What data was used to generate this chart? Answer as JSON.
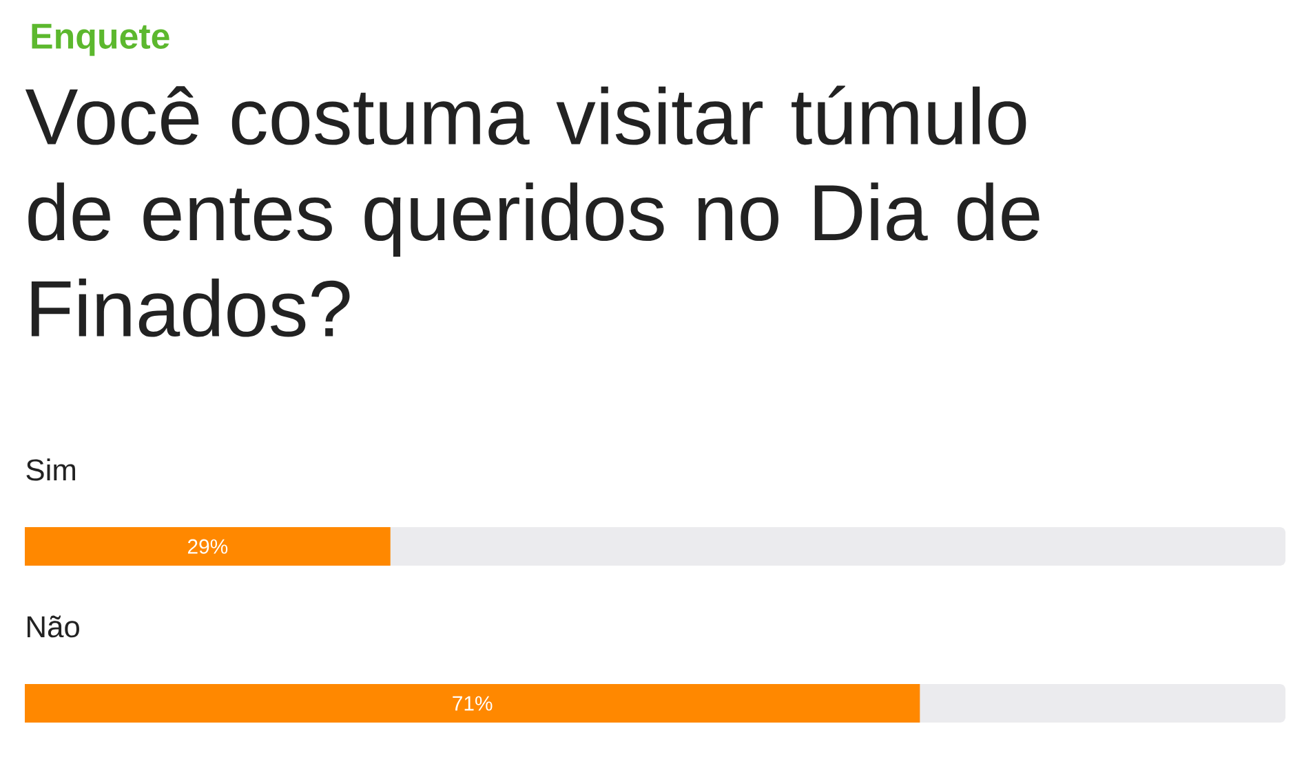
{
  "chart_data": {
    "type": "bar",
    "orientation": "horizontal",
    "subtitle": "Enquete",
    "title": "Você costuma visitar túmulo de entes queridos no Dia de Finados?",
    "categories": [
      "Sim",
      "Não"
    ],
    "values": [
      29,
      71
    ],
    "value_labels": [
      "29%",
      "71%"
    ],
    "color": "#ff8800",
    "xlim": [
      0,
      100
    ]
  }
}
